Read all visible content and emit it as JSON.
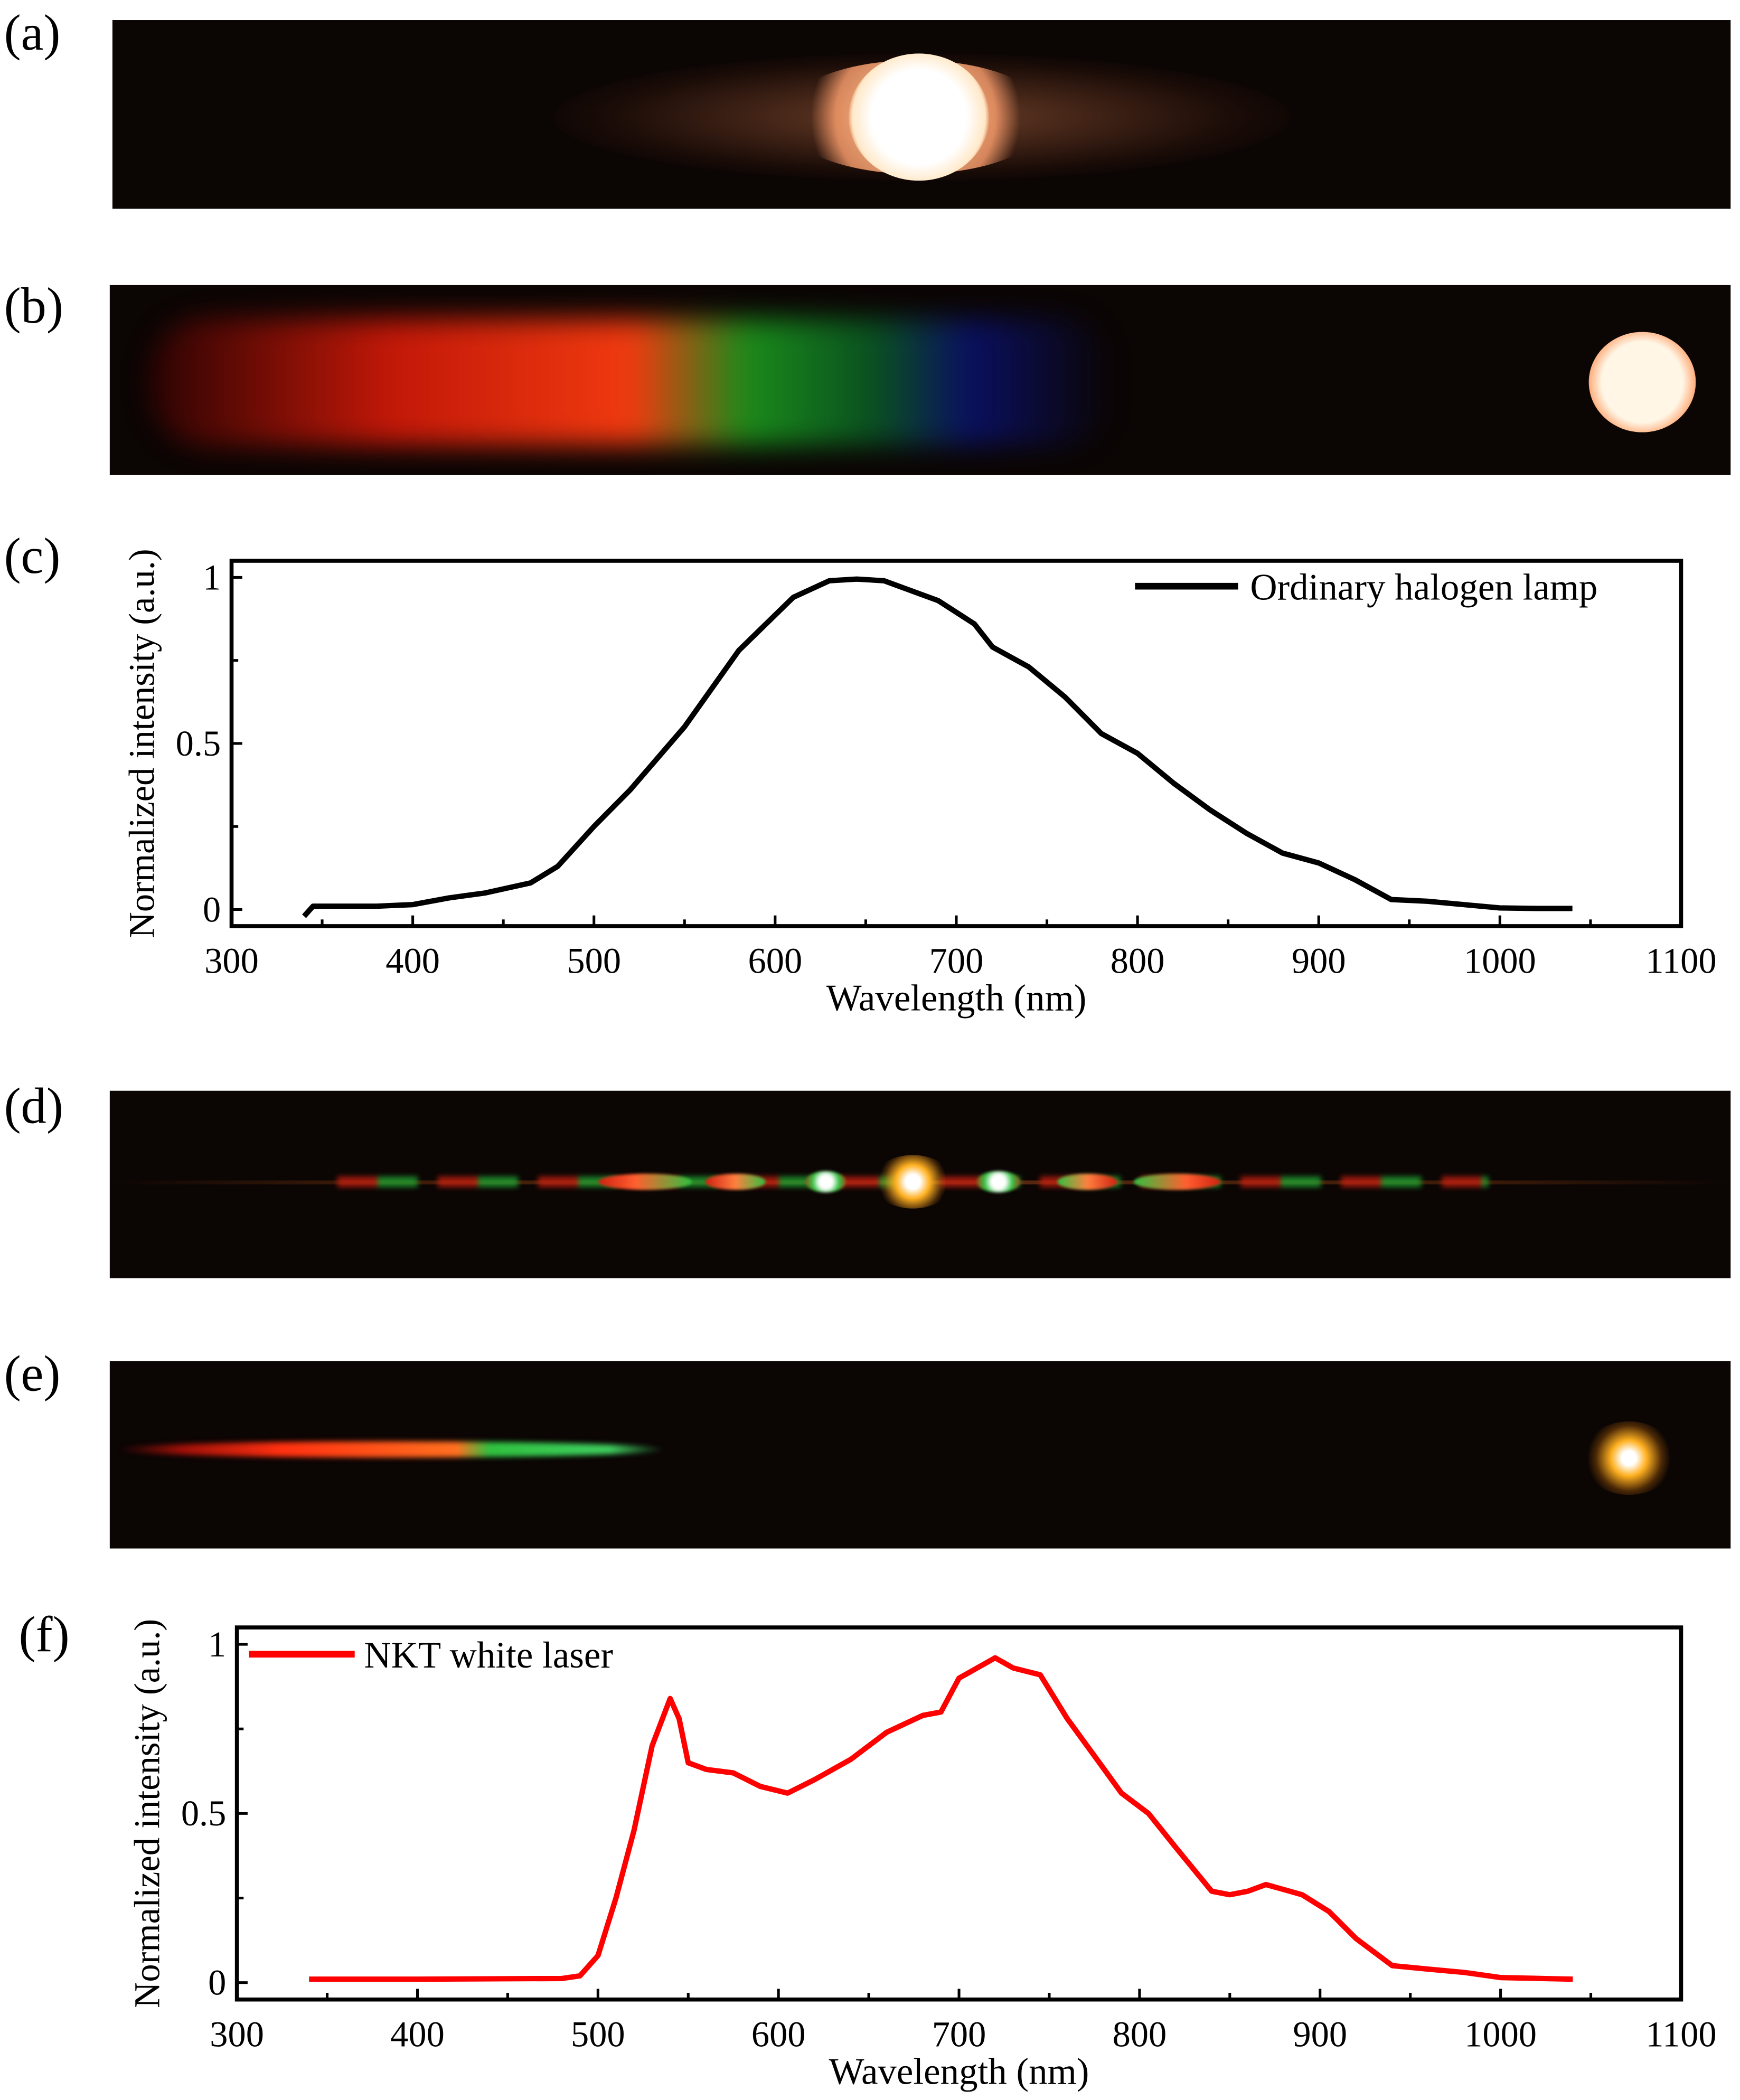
{
  "panels": {
    "a": {
      "label": "(a)"
    },
    "b": {
      "label": "(b)"
    },
    "c": {
      "label": "(c)"
    },
    "d": {
      "label": "(d)"
    },
    "e": {
      "label": "(e)"
    },
    "f": {
      "label": "(f)"
    }
  },
  "chart_data": [
    {
      "type": "line",
      "panel": "c",
      "xlabel": "Wavelength (nm)",
      "ylabel": "Normalized intensity (a.u.)",
      "xlim": [
        300,
        1100
      ],
      "ylim": [
        -0.05,
        1.05
      ],
      "xticks": [
        300,
        400,
        500,
        600,
        700,
        800,
        900,
        1000,
        1100
      ],
      "yticks": [
        0,
        0.5,
        1
      ],
      "ytick_labels": [
        "0",
        "0.5",
        "1"
      ],
      "legend": "top-right",
      "grid": false,
      "series": [
        {
          "name": "Ordinary halogen lamp",
          "color": "#000000",
          "x": [
            340,
            345,
            360,
            380,
            400,
            420,
            440,
            465,
            480,
            500,
            520,
            550,
            580,
            610,
            630,
            645,
            660,
            690,
            710,
            720,
            740,
            760,
            780,
            800,
            820,
            840,
            860,
            880,
            900,
            920,
            940,
            960,
            980,
            1000,
            1020,
            1040
          ],
          "y": [
            -0.02,
            0.01,
            0.01,
            0.01,
            0.015,
            0.035,
            0.05,
            0.08,
            0.13,
            0.25,
            0.36,
            0.55,
            0.78,
            0.94,
            0.99,
            0.995,
            0.99,
            0.93,
            0.86,
            0.79,
            0.73,
            0.64,
            0.53,
            0.47,
            0.38,
            0.3,
            0.23,
            0.17,
            0.14,
            0.09,
            0.03,
            0.025,
            0.015,
            0.005,
            0.003,
            0.003
          ]
        }
      ]
    },
    {
      "type": "line",
      "panel": "f",
      "xlabel": "Wavelength (nm)",
      "ylabel": "Normalized intensity (a.u.)",
      "xlim": [
        300,
        1100
      ],
      "ylim": [
        -0.05,
        1.05
      ],
      "xticks": [
        300,
        400,
        500,
        600,
        700,
        800,
        900,
        1000,
        1100
      ],
      "yticks": [
        0,
        0.5,
        1
      ],
      "ytick_labels": [
        "0",
        "0.5",
        "1"
      ],
      "legend": "top-left",
      "grid": false,
      "series": [
        {
          "name": "NKT white laser",
          "color": "#ff0000",
          "x": [
            340,
            400,
            480,
            490,
            500,
            510,
            520,
            530,
            540,
            545,
            550,
            560,
            575,
            590,
            605,
            620,
            640,
            660,
            680,
            690,
            700,
            710,
            720,
            730,
            745,
            760,
            775,
            790,
            805,
            820,
            840,
            850,
            860,
            870,
            890,
            905,
            920,
            940,
            960,
            980,
            1000,
            1040
          ],
          "y": [
            0.01,
            0.01,
            0.012,
            0.02,
            0.08,
            0.25,
            0.45,
            0.7,
            0.84,
            0.78,
            0.65,
            0.63,
            0.62,
            0.58,
            0.56,
            0.6,
            0.66,
            0.74,
            0.79,
            0.8,
            0.9,
            0.93,
            0.96,
            0.93,
            0.91,
            0.78,
            0.67,
            0.56,
            0.5,
            0.4,
            0.27,
            0.26,
            0.27,
            0.29,
            0.26,
            0.21,
            0.13,
            0.05,
            0.04,
            0.03,
            0.015,
            0.01
          ]
        }
      ]
    }
  ]
}
